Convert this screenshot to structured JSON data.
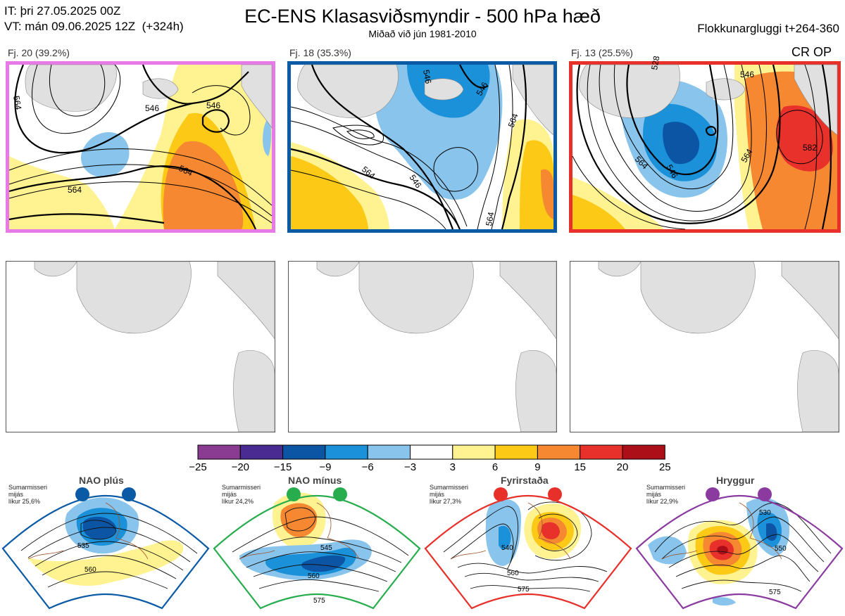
{
  "header": {
    "init_time": "IT: þri 27.05.2025 00Z",
    "valid_time": "VT: mán 09.06.2025 12Z  (+324h)",
    "title": "EC-ENS Klasasviðsmyndir - 500 hPa hæð",
    "subtitle": "Miðað við jún 1981-2010",
    "window": "Flokkunargluggi t+264-360"
  },
  "clusters": [
    {
      "label": "Fj. 20 (39.2%)",
      "border_color": "#e87ae8",
      "tag": "",
      "contour_labels": [
        "564",
        "546",
        "546",
        "564",
        "564"
      ]
    },
    {
      "label": "Fj. 18 (35.3%)",
      "border_color": "#0a5aa6",
      "tag": "",
      "contour_labels": [
        "546",
        "546",
        "564",
        "546",
        "564",
        "564"
      ]
    },
    {
      "label": "Fj. 13 (25.5%)",
      "border_color": "#e8302a",
      "tag": "CR OP",
      "contour_labels": [
        "546",
        "528",
        "564",
        "546",
        "564",
        "582"
      ]
    }
  ],
  "colorbar": {
    "ticks": [
      "−25",
      "−20",
      "−15",
      "−9",
      "−6",
      "−3",
      "3",
      "6",
      "9",
      "15",
      "20",
      "25"
    ],
    "colors": [
      "#8a3c92",
      "#4a2b92",
      "#0c55a5",
      "#1a91d9",
      "#88c4ec",
      "#ffffff",
      "#fff291",
      "#fcc916",
      "#f58831",
      "#e8312b",
      "#ac0f17"
    ]
  },
  "regimes": [
    {
      "name": "NAO plús",
      "info": "Sumarmisseri\nmijás\nlíkur 25,6%",
      "color": "#0a5aa6",
      "contour_labels": [
        "535",
        "560"
      ]
    },
    {
      "name": "NAO mínus",
      "info": "Sumarmisseri\nmijás\nlíkur 24,2%",
      "color": "#27ad4e",
      "contour_labels": [
        "545",
        "560",
        "575"
      ]
    },
    {
      "name": "Fyrirstaða",
      "info": "Sumarmisseri\nmijás\nlíkur 27,3%",
      "color": "#e8302a",
      "contour_labels": [
        "540",
        "560",
        "575"
      ]
    },
    {
      "name": "Hryggur",
      "info": "Sumarmisseri\nmijás\nlíkur 22,9%",
      "color": "#8b3aa0",
      "contour_labels": [
        "530",
        "550",
        "575"
      ]
    }
  ],
  "chart_data": {
    "type": "heatmap",
    "title": "EC-ENS Klasasviðsmyndir - 500 hPa hæð",
    "subtitle": "Miðað við jún 1981-2010",
    "colorbar_ticks": [
      -25,
      -20,
      -15,
      -9,
      -6,
      -3,
      3,
      6,
      9,
      15,
      20,
      25
    ],
    "clusters": [
      {
        "id": 20,
        "percent": 39.2
      },
      {
        "id": 18,
        "percent": 35.3
      },
      {
        "id": 13,
        "percent": 25.5
      }
    ],
    "regimes": [
      {
        "name": "NAO plús",
        "likelihood_percent": 25.6
      },
      {
        "name": "NAO mínus",
        "likelihood_percent": 24.2
      },
      {
        "name": "Fyrirstaða",
        "likelihood_percent": 27.3
      },
      {
        "name": "Hryggur",
        "likelihood_percent": 22.9
      }
    ]
  }
}
